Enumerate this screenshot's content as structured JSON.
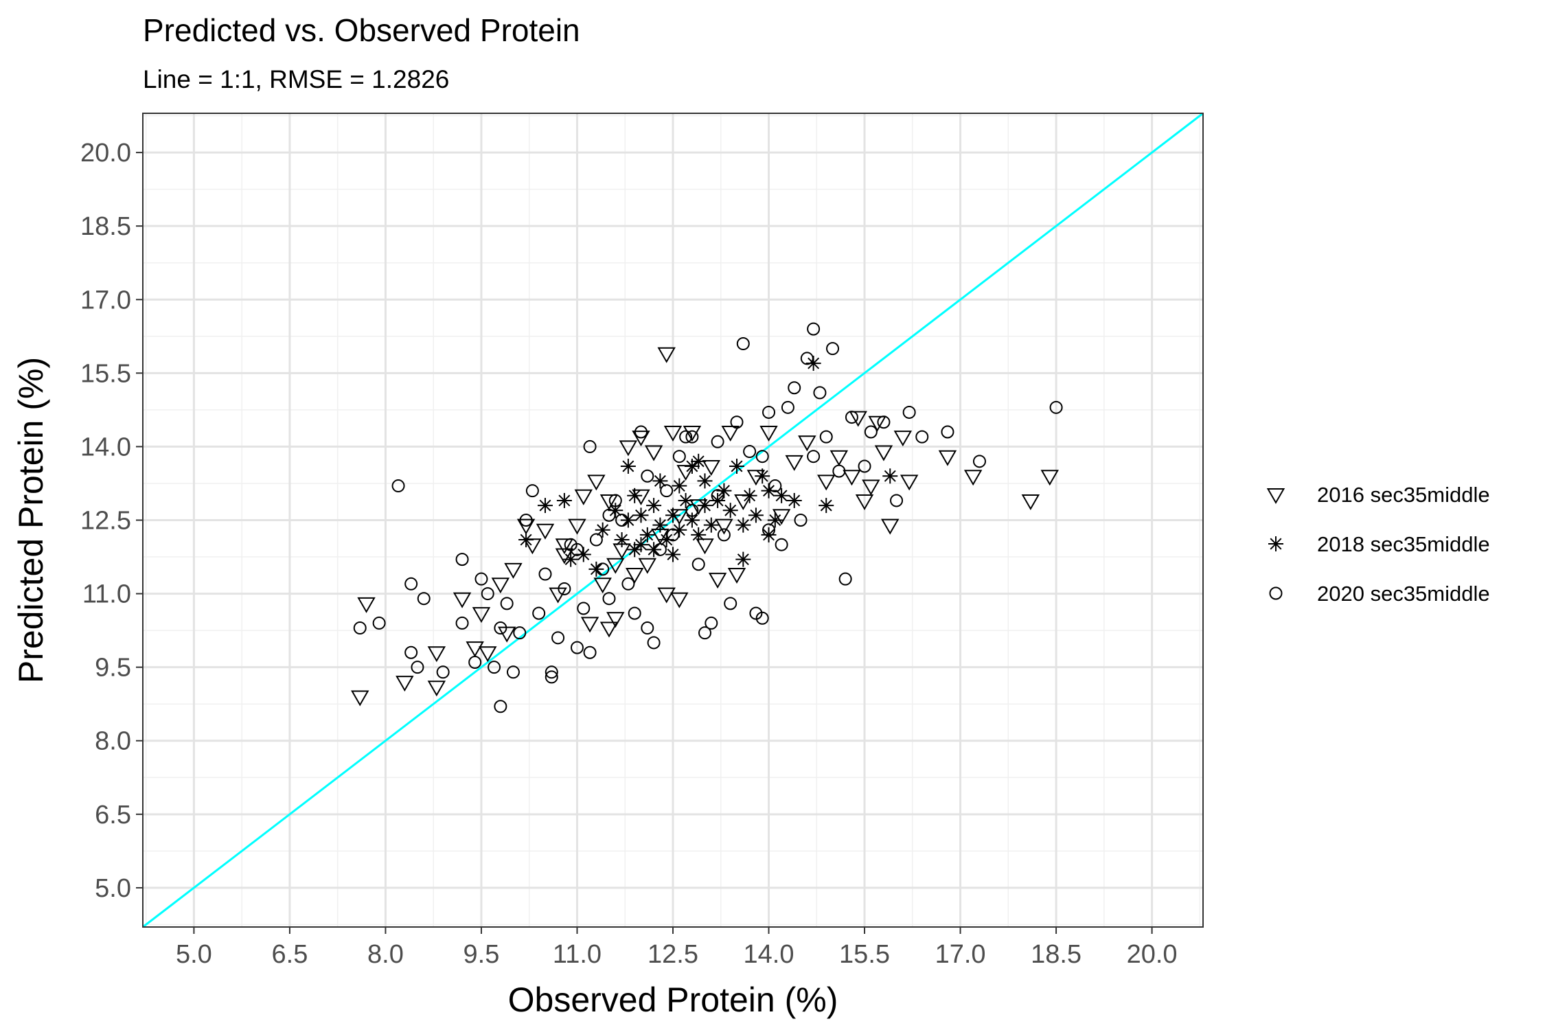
{
  "chart_data": {
    "type": "scatter",
    "title": "Predicted vs. Observed Protein",
    "subtitle": "Line = 1:1, RMSE = 1.2826",
    "xlabel": "Observed Protein (%)",
    "ylabel": "Predicted Protein (%)",
    "xlim": [
      4.2,
      20.8
    ],
    "ylim": [
      4.2,
      20.8
    ],
    "x_ticks": [
      "5.0",
      "6.5",
      "8.0",
      "9.5",
      "11.0",
      "12.5",
      "14.0",
      "15.5",
      "17.0",
      "18.5",
      "20.0"
    ],
    "y_ticks": [
      "5.0",
      "6.5",
      "8.0",
      "9.5",
      "11.0",
      "12.5",
      "14.0",
      "15.5",
      "17.0",
      "18.5",
      "20.0"
    ],
    "x_tick_values": [
      5.0,
      6.5,
      8.0,
      9.5,
      11.0,
      12.5,
      14.0,
      15.5,
      17.0,
      18.5,
      20.0
    ],
    "y_tick_values": [
      5.0,
      6.5,
      8.0,
      9.5,
      11.0,
      12.5,
      14.0,
      15.5,
      17.0,
      18.5,
      20.0
    ],
    "grid": true,
    "reference_line": {
      "slope": 1,
      "intercept": 0,
      "color": "#00FFFF"
    },
    "legend_position": "right",
    "series": [
      {
        "name": "2016 sec35middle",
        "marker": "triangle-down",
        "points": [
          [
            7.6,
            8.9
          ],
          [
            7.7,
            10.8
          ],
          [
            8.3,
            9.2
          ],
          [
            8.8,
            9.1
          ],
          [
            8.8,
            9.8
          ],
          [
            9.2,
            10.9
          ],
          [
            9.4,
            9.9
          ],
          [
            9.5,
            10.6
          ],
          [
            9.6,
            9.8
          ],
          [
            9.8,
            11.2
          ],
          [
            9.9,
            10.2
          ],
          [
            10.0,
            11.5
          ],
          [
            10.2,
            12.4
          ],
          [
            10.3,
            12.0
          ],
          [
            10.5,
            12.3
          ],
          [
            10.7,
            11.0
          ],
          [
            10.8,
            11.8
          ],
          [
            10.8,
            12.0
          ],
          [
            11.0,
            12.4
          ],
          [
            11.1,
            13.0
          ],
          [
            11.2,
            10.4
          ],
          [
            11.3,
            13.3
          ],
          [
            11.4,
            11.2
          ],
          [
            11.5,
            12.9
          ],
          [
            11.5,
            10.3
          ],
          [
            11.6,
            11.6
          ],
          [
            11.6,
            10.5
          ],
          [
            11.7,
            11.9
          ],
          [
            11.8,
            14.0
          ],
          [
            11.9,
            11.4
          ],
          [
            12.0,
            13.0
          ],
          [
            12.0,
            14.2
          ],
          [
            12.1,
            11.6
          ],
          [
            12.2,
            13.9
          ],
          [
            12.3,
            12.2
          ],
          [
            12.4,
            15.9
          ],
          [
            12.4,
            11.0
          ],
          [
            12.5,
            14.3
          ],
          [
            12.6,
            12.6
          ],
          [
            12.6,
            10.9
          ],
          [
            12.7,
            13.5
          ],
          [
            12.8,
            14.3
          ],
          [
            12.9,
            12.8
          ],
          [
            13.0,
            12.0
          ],
          [
            13.1,
            13.6
          ],
          [
            13.2,
            11.3
          ],
          [
            13.3,
            12.4
          ],
          [
            13.4,
            14.3
          ],
          [
            13.5,
            11.4
          ],
          [
            13.6,
            12.9
          ],
          [
            13.8,
            13.4
          ],
          [
            14.0,
            14.3
          ],
          [
            14.2,
            12.6
          ],
          [
            14.4,
            13.7
          ],
          [
            14.6,
            14.1
          ],
          [
            14.9,
            13.3
          ],
          [
            15.1,
            13.8
          ],
          [
            15.3,
            13.4
          ],
          [
            15.4,
            14.6
          ],
          [
            15.5,
            12.9
          ],
          [
            15.6,
            13.2
          ],
          [
            15.7,
            14.5
          ],
          [
            15.8,
            13.9
          ],
          [
            15.9,
            12.4
          ],
          [
            16.1,
            14.2
          ],
          [
            16.2,
            13.3
          ],
          [
            16.8,
            13.8
          ],
          [
            17.2,
            13.4
          ],
          [
            18.1,
            12.9
          ],
          [
            18.4,
            13.4
          ]
        ]
      },
      {
        "name": "2018 sec35middle",
        "marker": "asterisk",
        "points": [
          [
            10.2,
            12.1
          ],
          [
            10.5,
            12.8
          ],
          [
            10.8,
            12.9
          ],
          [
            10.9,
            11.7
          ],
          [
            11.1,
            11.8
          ],
          [
            11.3,
            11.5
          ],
          [
            11.4,
            12.3
          ],
          [
            11.6,
            12.7
          ],
          [
            11.7,
            12.1
          ],
          [
            11.8,
            12.5
          ],
          [
            11.9,
            11.9
          ],
          [
            11.9,
            13.0
          ],
          [
            12.0,
            12.6
          ],
          [
            12.1,
            12.2
          ],
          [
            12.2,
            11.9
          ],
          [
            12.2,
            12.8
          ],
          [
            12.3,
            13.3
          ],
          [
            12.4,
            12.1
          ],
          [
            12.5,
            12.6
          ],
          [
            12.5,
            11.8
          ],
          [
            12.6,
            13.2
          ],
          [
            12.6,
            12.3
          ],
          [
            12.7,
            12.9
          ],
          [
            12.8,
            12.5
          ],
          [
            12.8,
            13.6
          ],
          [
            12.9,
            12.2
          ],
          [
            13.0,
            12.8
          ],
          [
            13.0,
            13.3
          ],
          [
            13.1,
            12.4
          ],
          [
            13.2,
            12.9
          ],
          [
            13.3,
            13.1
          ],
          [
            13.4,
            12.7
          ],
          [
            13.5,
            13.6
          ],
          [
            13.6,
            12.4
          ],
          [
            13.7,
            13.0
          ],
          [
            13.8,
            12.6
          ],
          [
            13.9,
            13.4
          ],
          [
            14.0,
            13.1
          ],
          [
            14.1,
            12.5
          ],
          [
            14.2,
            13.0
          ],
          [
            14.4,
            12.9
          ],
          [
            14.7,
            15.7
          ],
          [
            14.9,
            12.8
          ],
          [
            15.9,
            13.4
          ],
          [
            11.8,
            13.6
          ],
          [
            12.3,
            12.4
          ],
          [
            12.9,
            13.7
          ],
          [
            13.6,
            11.7
          ],
          [
            14.0,
            12.2
          ],
          [
            12.0,
            12.0
          ]
        ]
      },
      {
        "name": "2020 sec35middle",
        "marker": "circle",
        "points": [
          [
            7.6,
            10.3
          ],
          [
            7.9,
            10.4
          ],
          [
            8.2,
            13.2
          ],
          [
            8.4,
            11.2
          ],
          [
            8.4,
            9.8
          ],
          [
            8.5,
            9.5
          ],
          [
            8.6,
            10.9
          ],
          [
            8.9,
            9.4
          ],
          [
            9.2,
            11.7
          ],
          [
            9.2,
            10.4
          ],
          [
            9.4,
            9.6
          ],
          [
            9.5,
            11.3
          ],
          [
            9.6,
            11.0
          ],
          [
            9.7,
            9.5
          ],
          [
            9.8,
            8.7
          ],
          [
            9.8,
            10.3
          ],
          [
            9.9,
            10.8
          ],
          [
            10.0,
            9.4
          ],
          [
            10.1,
            10.2
          ],
          [
            10.2,
            12.5
          ],
          [
            10.3,
            13.1
          ],
          [
            10.4,
            10.6
          ],
          [
            10.5,
            11.4
          ],
          [
            10.6,
            9.4
          ],
          [
            10.6,
            9.3
          ],
          [
            10.7,
            10.1
          ],
          [
            10.8,
            11.1
          ],
          [
            11.0,
            9.9
          ],
          [
            11.1,
            10.7
          ],
          [
            11.2,
            14.0
          ],
          [
            11.2,
            9.8
          ],
          [
            11.3,
            12.1
          ],
          [
            11.4,
            11.5
          ],
          [
            11.5,
            10.9
          ],
          [
            11.6,
            12.9
          ],
          [
            11.7,
            12.5
          ],
          [
            11.8,
            11.2
          ],
          [
            11.9,
            10.6
          ],
          [
            12.0,
            14.3
          ],
          [
            12.1,
            10.3
          ],
          [
            12.2,
            10.0
          ],
          [
            12.3,
            11.9
          ],
          [
            12.4,
            13.1
          ],
          [
            12.5,
            12.2
          ],
          [
            12.6,
            13.8
          ],
          [
            12.7,
            14.2
          ],
          [
            12.8,
            12.7
          ],
          [
            12.9,
            11.6
          ],
          [
            13.0,
            10.2
          ],
          [
            13.1,
            10.4
          ],
          [
            13.2,
            13.0
          ],
          [
            13.3,
            12.2
          ],
          [
            13.4,
            10.8
          ],
          [
            13.5,
            14.5
          ],
          [
            13.6,
            16.1
          ],
          [
            13.7,
            13.9
          ],
          [
            13.8,
            10.6
          ],
          [
            13.9,
            10.5
          ],
          [
            14.0,
            12.3
          ],
          [
            14.0,
            14.7
          ],
          [
            14.1,
            13.2
          ],
          [
            14.2,
            12.0
          ],
          [
            14.3,
            14.8
          ],
          [
            14.4,
            15.2
          ],
          [
            14.5,
            12.5
          ],
          [
            14.6,
            15.8
          ],
          [
            14.7,
            16.4
          ],
          [
            14.8,
            15.1
          ],
          [
            14.9,
            14.2
          ],
          [
            15.0,
            16.0
          ],
          [
            15.1,
            13.5
          ],
          [
            15.2,
            11.3
          ],
          [
            15.3,
            14.6
          ],
          [
            15.5,
            13.6
          ],
          [
            15.6,
            14.3
          ],
          [
            15.8,
            14.5
          ],
          [
            16.0,
            12.9
          ],
          [
            16.2,
            14.7
          ],
          [
            16.4,
            14.2
          ],
          [
            16.8,
            14.3
          ],
          [
            17.3,
            13.7
          ],
          [
            18.5,
            14.8
          ],
          [
            11.5,
            12.6
          ],
          [
            12.1,
            13.4
          ],
          [
            13.2,
            14.1
          ],
          [
            13.9,
            13.8
          ],
          [
            10.9,
            12.0
          ],
          [
            12.8,
            14.2
          ],
          [
            14.7,
            13.8
          ],
          [
            11.0,
            11.9
          ]
        ]
      }
    ]
  }
}
